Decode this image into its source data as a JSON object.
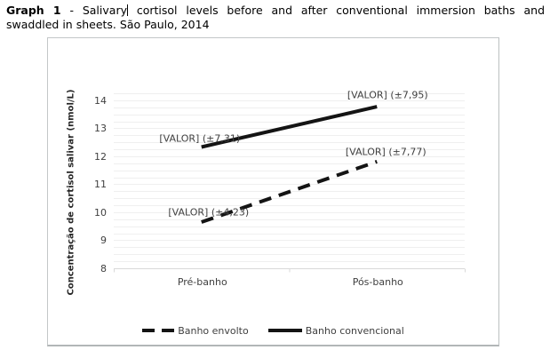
{
  "document": {
    "title_bold": "Graph 1",
    "title_line1_a": " - Salivary",
    "title_line1_b": " cortisol levels before and after conventional immersion baths and",
    "title_line2": "swaddled in sheets. São Paulo, 2014"
  },
  "chart_data": {
    "type": "line",
    "categories": [
      "Pré-banho",
      "Pós-banho"
    ],
    "series": [
      {
        "name": "Banho envolto",
        "style": "dashed",
        "values": [
          9.65,
          11.81
        ],
        "point_labels": [
          "[VALOR] (±4,23)",
          "[VALOR] (±7,77)"
        ]
      },
      {
        "name": "Banho convencional",
        "style": "solid",
        "values": [
          12.33,
          13.77
        ],
        "point_labels": [
          "[VALOR] (±7,31)",
          "[VALOR] (±7,95)"
        ]
      }
    ],
    "ylabel": "Concentração de cortisol salivar (nmol/L)",
    "xlabel": "",
    "yticks": [
      14,
      13,
      12,
      11,
      10,
      9,
      8
    ],
    "ylim": [
      8,
      14.25
    ],
    "minor_grid_step": 0.25,
    "grid": "horizontal-minor",
    "legend_position": "bottom",
    "colors": {
      "series_line": "#141414",
      "gridline": "#efefef",
      "axis_line": "#d9d9d9",
      "axis_text": "#404040",
      "frame_border": "#c3c7c8"
    }
  }
}
